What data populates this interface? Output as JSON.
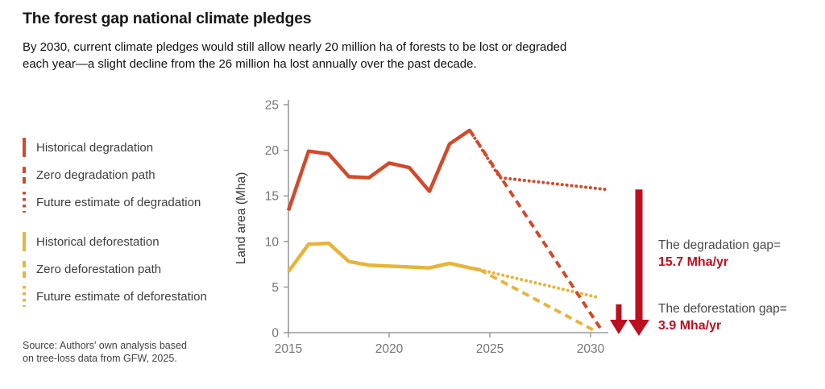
{
  "header": {
    "title": "The forest gap national climate pledges",
    "subtitle_line1": "By 2030, current climate pledges would still allow nearly 20 million ha of forests to be lost or degraded",
    "subtitle_line2": "each year—a slight decline from the 26 million ha lost annually over the past decade."
  },
  "legend": {
    "items": [
      {
        "label": "Historical degradation",
        "style": "solid",
        "group": "degradation"
      },
      {
        "label": "Zero degradation path",
        "style": "dashed",
        "group": "degradation"
      },
      {
        "label": "Future estimate of degradation",
        "style": "dotted",
        "group": "degradation"
      },
      {
        "label": "Historical deforestation",
        "style": "solid",
        "group": "deforestation"
      },
      {
        "label": "Zero deforestation path",
        "style": "dashed",
        "group": "deforestation"
      },
      {
        "label": "Future estimate of deforestation",
        "style": "dotted",
        "group": "deforestation"
      }
    ]
  },
  "source": {
    "line1": "Source: Authors' own analysis based",
    "line2": "on tree-loss data from GFW, 2025."
  },
  "annotations": {
    "degradation": {
      "label": "The degradation gap=",
      "value": "15.7 Mha/yr"
    },
    "deforestation": {
      "label": "The deforestation gap=",
      "value": "3.9 Mha/yr"
    }
  },
  "colors": {
    "degradation": "#d2492b",
    "deforestation": "#e7b43c",
    "gap": "#bb1020",
    "axis": "#9a9a9a",
    "tick": "#757575",
    "title_text": "#161616",
    "body_text": "#111111",
    "muted_text": "#4a4a4a"
  },
  "chart_data": {
    "type": "line",
    "title": "The forest gap national climate pledges",
    "xlabel": "",
    "ylabel": "Land area (Mha)",
    "xlim": [
      2015,
      2032
    ],
    "ylim": [
      0,
      25
    ],
    "xticks": [
      2015,
      2020,
      2025,
      2030
    ],
    "yticks": [
      0,
      5,
      10,
      15,
      20,
      25
    ],
    "grid": false,
    "legend_position": "left",
    "series": [
      {
        "name": "Historical deforestation",
        "color": "deforestation",
        "style": "solid",
        "width": 4.5,
        "x": [
          2015,
          2016,
          2017,
          2018,
          2019,
          2020,
          2021,
          2022,
          2023,
          2024,
          2024.5
        ],
        "y": [
          6.7,
          9.7,
          9.8,
          7.8,
          7.4,
          7.3,
          7.2,
          7.1,
          7.6,
          7.1,
          6.9
        ]
      },
      {
        "name": "Future estimate of deforestation",
        "color": "deforestation",
        "style": "dotted",
        "width": 4,
        "x": [
          2024.5,
          2030.3
        ],
        "y": [
          6.9,
          3.9
        ]
      },
      {
        "name": "Zero deforestation path",
        "color": "deforestation",
        "style": "dashed",
        "width": 4,
        "x": [
          2024.5,
          2030.3
        ],
        "y": [
          6.9,
          0.1
        ]
      },
      {
        "name": "Historical degradation",
        "color": "degradation",
        "style": "solid",
        "width": 4.5,
        "x": [
          2015,
          2016,
          2017,
          2018,
          2019,
          2020,
          2021,
          2022,
          2023,
          2024
        ],
        "y": [
          13.4,
          19.9,
          19.6,
          17.1,
          17.0,
          18.6,
          18.1,
          15.5,
          20.7,
          22.2
        ]
      },
      {
        "name": "Future estimate of degradation",
        "color": "degradation",
        "style": "dotted",
        "width": 4,
        "x": [
          2024,
          2025.5,
          2030.8
        ],
        "y": [
          22.2,
          17.0,
          15.7
        ]
      },
      {
        "name": "Zero degradation path",
        "color": "degradation",
        "style": "dashed",
        "width": 4,
        "x": [
          2024,
          2030.6
        ],
        "y": [
          22.2,
          0.1
        ]
      }
    ],
    "gaps": [
      {
        "label": "The degradation gap=",
        "value_mha_per_yr": 15.7
      },
      {
        "label": "The deforestation gap=",
        "value_mha_per_yr": 3.9
      }
    ]
  }
}
